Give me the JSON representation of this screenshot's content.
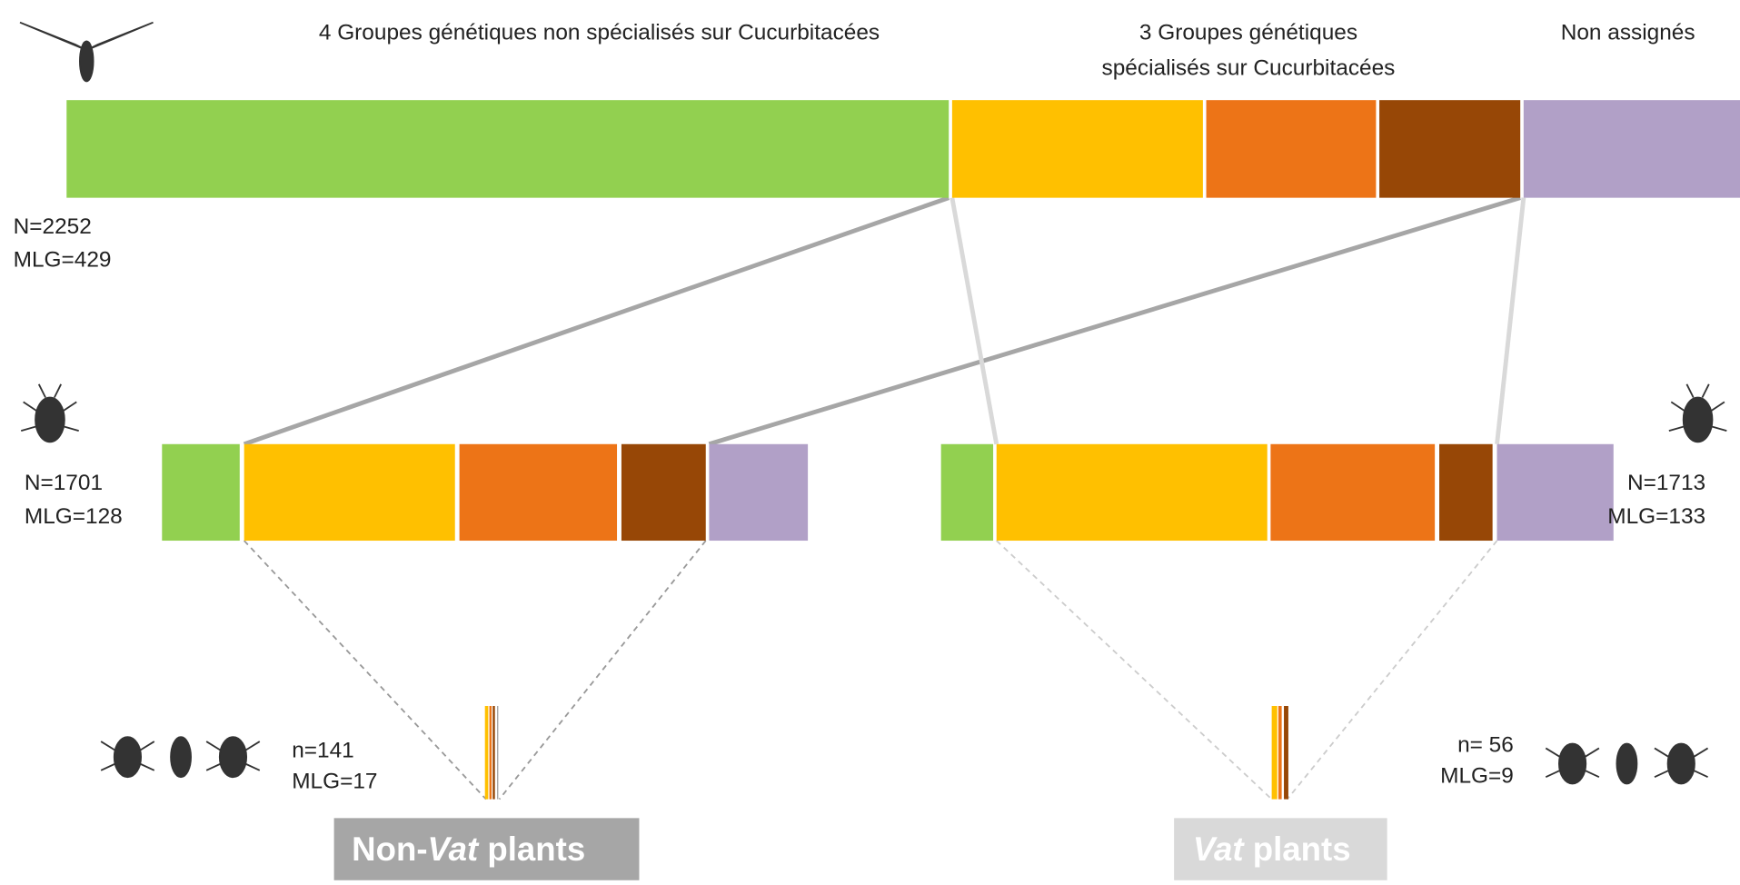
{
  "top_labels": [
    "4 Groupes génétiques non spécialisés sur Cucurbitacées",
    "3 Groupes génétiques",
    "spécialisés sur Cucurbitacées",
    "Non assignés"
  ],
  "levels": {
    "total": {
      "n": "N=2252",
      "mlg": "MLG=429"
    },
    "left": {
      "n": "N=1701",
      "mlg": "MLG=128"
    },
    "right": {
      "n": "N=1713",
      "mlg": "MLG=133"
    },
    "left_sub": {
      "n": "n=141",
      "mlg": "MLG=17"
    },
    "right_sub": {
      "n": "n= 56",
      "mlg": "MLG=9"
    }
  },
  "buttons": {
    "non_vat": {
      "prefix": "Non-",
      "italic": "Vat",
      "suffix": " plants"
    },
    "vat": {
      "italic": "Vat",
      "suffix": " plants"
    }
  }
}
